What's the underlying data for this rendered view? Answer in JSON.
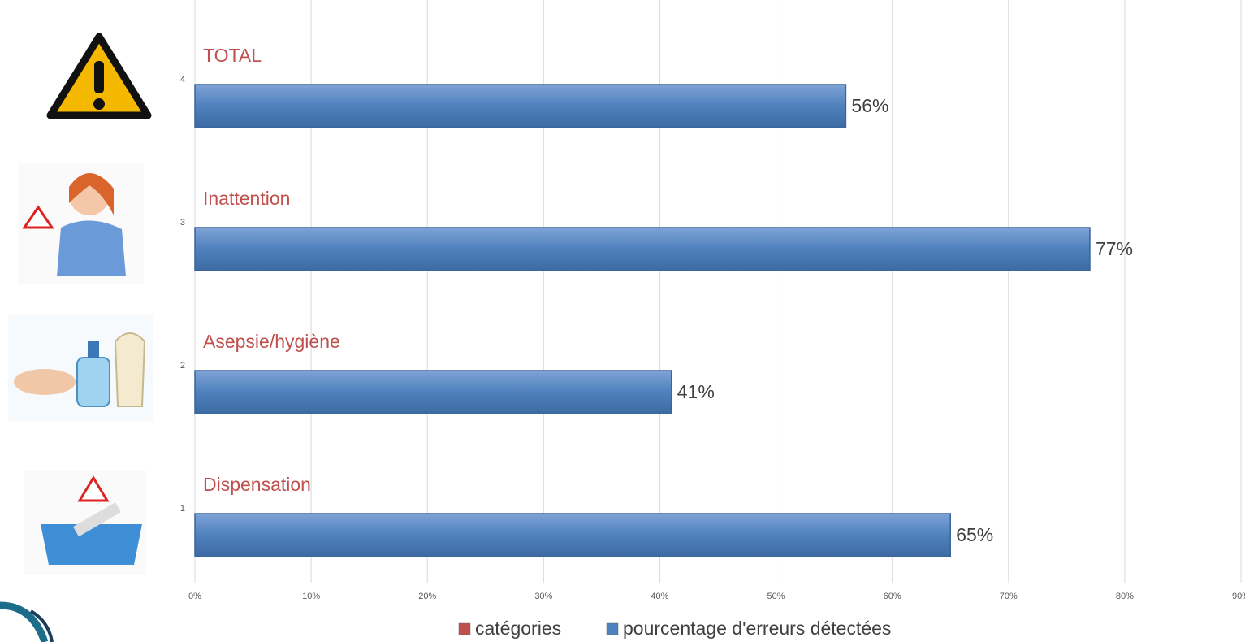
{
  "chart_data": {
    "type": "bar",
    "orientation": "horizontal",
    "categories": [
      "1",
      "2",
      "3",
      "4"
    ],
    "series": [
      {
        "name": "catégories",
        "color": "#c0504d",
        "value_labels": [
          "Dispensation",
          "Asepsie/hygiène",
          "Inattention",
          "TOTAL"
        ]
      },
      {
        "name": "pourcentage d'erreurs détectées",
        "color": "#4f81bd",
        "values": [
          65,
          41,
          77,
          56
        ],
        "value_labels": [
          "65%",
          "41%",
          "77%",
          "56%"
        ]
      }
    ],
    "xlim": [
      0,
      90
    ],
    "xticks": [
      {
        "value": 0,
        "label": "0%"
      },
      {
        "value": 10,
        "label": "10%"
      },
      {
        "value": 20,
        "label": "20%"
      },
      {
        "value": 30,
        "label": "30%"
      },
      {
        "value": 40,
        "label": "40%"
      },
      {
        "value": 50,
        "label": "50%"
      },
      {
        "value": 60,
        "label": "60%"
      },
      {
        "value": 70,
        "label": "70%"
      },
      {
        "value": 80,
        "label": "80%"
      },
      {
        "value": 90,
        "label": "90%"
      }
    ],
    "grid": true,
    "legend": "bottom"
  }
}
